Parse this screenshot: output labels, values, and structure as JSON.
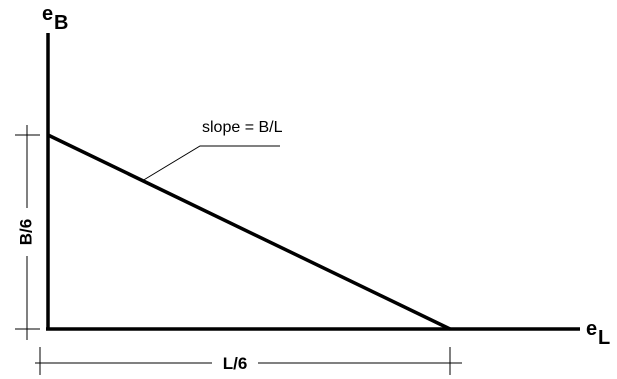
{
  "y_axis_label": {
    "main": "e",
    "sub": "B"
  },
  "x_axis_label": {
    "main": "e",
    "sub": "L"
  },
  "vertical_dimension_label": "B/6",
  "horizontal_dimension_label": "L/6",
  "slope_annotation": "slope = B/L",
  "colors": {
    "line": "#000000",
    "background": "#ffffff"
  }
}
